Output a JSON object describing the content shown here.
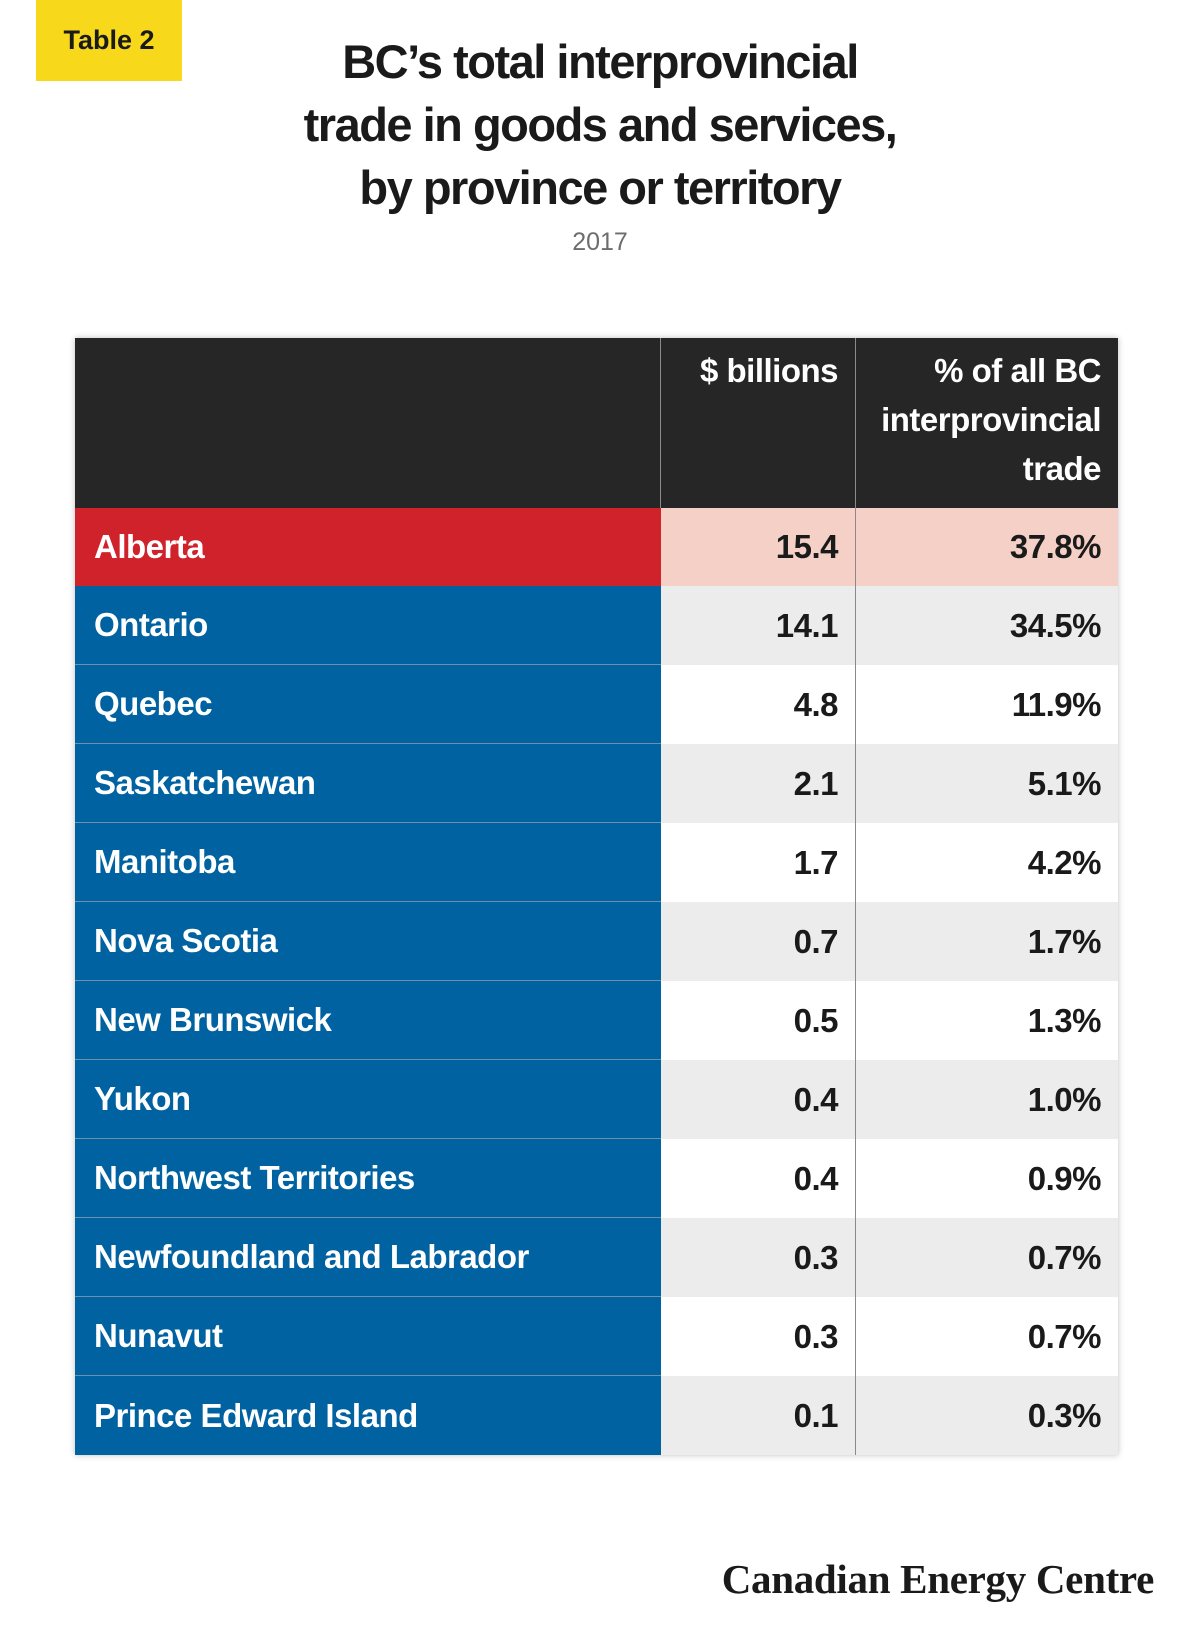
{
  "badge": "Table 2",
  "title_lines": [
    "BC’s total interprovincial",
    "trade in goods and services,",
    "by province or territory"
  ],
  "subtitle": "2017",
  "logo": "Canadian Energy Centre",
  "colors": {
    "badge": "#f7d81b",
    "header": "#262626",
    "highlight": "#d0222b",
    "highlight_light": "#f4d0c6",
    "row_label": "#0062a0",
    "row_alt": "#ececec"
  },
  "chart_data": {
    "type": "table",
    "title": "BC’s total interprovincial trade in goods and services, by province or territory",
    "subtitle": "2017",
    "columns": [
      "",
      "$ billions",
      "% of all BC interprovincial trade"
    ],
    "header_lines": {
      "billions": [
        "$ billions"
      ],
      "percent": [
        "% of all BC",
        "interprovincial",
        "trade"
      ]
    },
    "rows": [
      {
        "name": "Alberta",
        "billions": "15.4",
        "percent": "37.8%"
      },
      {
        "name": "Ontario",
        "billions": "14.1",
        "percent": "34.5%"
      },
      {
        "name": "Quebec",
        "billions": "4.8",
        "percent": "11.9%"
      },
      {
        "name": "Saskatchewan",
        "billions": "2.1",
        "percent": "5.1%"
      },
      {
        "name": "Manitoba",
        "billions": "1.7",
        "percent": "4.2%"
      },
      {
        "name": "Nova Scotia",
        "billions": "0.7",
        "percent": "1.7%"
      },
      {
        "name": "New Brunswick",
        "billions": "0.5",
        "percent": "1.3%"
      },
      {
        "name": "Yukon",
        "billions": "0.4",
        "percent": "1.0%"
      },
      {
        "name": "Northwest Territories",
        "billions": "0.4",
        "percent": "0.9%"
      },
      {
        "name": "Newfoundland and Labrador",
        "billions": "0.3",
        "percent": "0.7%"
      },
      {
        "name": "Nunavut",
        "billions": "0.3",
        "percent": "0.7%"
      },
      {
        "name": "Prince Edward Island",
        "billions": "0.1",
        "percent": "0.3%"
      }
    ]
  }
}
